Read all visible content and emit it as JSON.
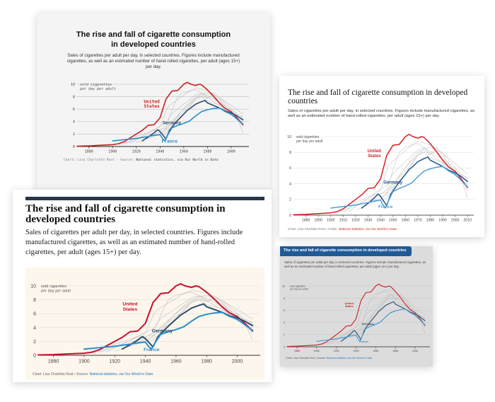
{
  "chart_data": {
    "type": "line",
    "title": "The rise and fall of cigarette consumption in developed countries",
    "subtitle": "Sales of cigarettes per adult per day, in selected countries. Figures include manufactured cigarettes, as well as an estimated number of hand-rolled cigarettes, per adult (ages 15+) per day.",
    "ylabel_lines": [
      "sold cigarettes",
      "per day per adult"
    ],
    "ylim": [
      0,
      10
    ],
    "yticks": [
      0,
      2,
      4,
      6,
      8,
      10
    ],
    "xlim": [
      1870,
      2015
    ],
    "xticks_wide": [
      1880,
      1900,
      1920,
      1940,
      1960,
      1980,
      2000
    ],
    "xticks_dense": [
      1880,
      1890,
      1900,
      1910,
      1920,
      1930,
      1940,
      1950,
      1960,
      1970,
      1980,
      1990,
      2000,
      2010
    ],
    "xticks_c1": [
      1880,
      1900,
      1920,
      1940,
      1960,
      1980,
      2000
    ],
    "xticks_c4": [
      1880,
      1900,
      1920,
      1940,
      1960,
      1980,
      2000
    ],
    "colors": {
      "united_states": "#cc1f1f",
      "germany": "#2b4c6e",
      "france": "#2b8fc9",
      "other": "#c8c8c8",
      "blue_dark": "#20558c",
      "blue_light": "#4e9fd6"
    },
    "series": [
      {
        "name": "United States",
        "label": [
          "United",
          "States"
        ],
        "key": "united_states",
        "x": [
          1870,
          1880,
          1890,
          1900,
          1905,
          1910,
          1915,
          1920,
          1925,
          1930,
          1935,
          1940,
          1945,
          1950,
          1955,
          1960,
          1963,
          1966,
          1970,
          1973,
          1975,
          1980,
          1985,
          1990,
          1995,
          2000,
          2005,
          2010
        ],
        "y": [
          0.05,
          0.1,
          0.2,
          0.3,
          0.45,
          0.8,
          1.4,
          2.0,
          2.6,
          3.4,
          3.5,
          4.6,
          7.6,
          8.9,
          9.0,
          10.0,
          10.3,
          10.0,
          9.8,
          10.0,
          9.9,
          9.1,
          8.1,
          7.0,
          6.1,
          5.6,
          4.6,
          3.5
        ]
      },
      {
        "name": "Germany",
        "label": [
          "Germany"
        ],
        "key": "germany",
        "x": [
          1925,
          1928,
          1930,
          1935,
          1938,
          1940,
          1945,
          1948,
          1950,
          1955,
          1960,
          1963,
          1966,
          1970,
          1975,
          1978,
          1980,
          1985,
          1990,
          1995,
          2000,
          2005,
          2010
        ],
        "y": [
          0.9,
          1.3,
          1.5,
          2.2,
          2.7,
          2.4,
          1.2,
          2.6,
          3.1,
          4.2,
          5.2,
          5.8,
          6.2,
          6.8,
          7.2,
          7.4,
          7.0,
          6.6,
          6.2,
          5.7,
          5.4,
          4.9,
          4.3
        ]
      },
      {
        "name": "France",
        "label": [
          "France"
        ],
        "key": "france",
        "x": [
          1900,
          1910,
          1920,
          1930,
          1935,
          1940,
          1942,
          1944,
          1946,
          1950,
          1955,
          1960,
          1965,
          1970,
          1975,
          1980,
          1985,
          1990,
          1995,
          2000,
          2005,
          2010
        ],
        "y": [
          0.9,
          1.1,
          1.3,
          1.6,
          1.8,
          1.9,
          1.3,
          0.9,
          1.7,
          3.0,
          3.4,
          3.7,
          4.1,
          4.9,
          5.6,
          5.9,
          6.1,
          6.2,
          5.6,
          5.2,
          4.4,
          3.6
        ]
      }
    ],
    "other_series": [
      {
        "x": [
          1905,
          1915,
          1920,
          1930,
          1940,
          1946,
          1950,
          1960,
          1965,
          1970,
          1975,
          1980,
          1990,
          2000,
          2010
        ],
        "y": [
          0.3,
          0.9,
          1.6,
          2.3,
          3.2,
          6.2,
          6.9,
          8.2,
          9.0,
          9.1,
          8.6,
          7.9,
          6.6,
          5.0,
          3.9
        ]
      },
      {
        "x": [
          1910,
          1920,
          1930,
          1940,
          1945,
          1950,
          1960,
          1970,
          1975,
          1980,
          1990,
          2000,
          2010
        ],
        "y": [
          0.4,
          1.2,
          2.1,
          3.3,
          3.8,
          5.3,
          6.8,
          8.3,
          8.6,
          8.2,
          7.1,
          5.9,
          4.6
        ]
      },
      {
        "x": [
          1920,
          1930,
          1940,
          1950,
          1955,
          1960,
          1965,
          1970,
          1975,
          1980,
          1990,
          2000,
          2010
        ],
        "y": [
          0.6,
          1.3,
          2.0,
          3.6,
          4.4,
          5.2,
          6.6,
          7.6,
          8.0,
          7.3,
          6.7,
          5.4,
          4.8
        ]
      },
      {
        "x": [
          1915,
          1925,
          1935,
          1945,
          1950,
          1955,
          1960,
          1965,
          1970,
          1975,
          1980,
          1985,
          1990,
          2000,
          2010
        ],
        "y": [
          0.5,
          1.6,
          2.6,
          2.9,
          5.8,
          8.0,
          8.7,
          8.8,
          9.4,
          9.2,
          8.9,
          8.5,
          7.9,
          6.6,
          5.2
        ]
      },
      {
        "x": [
          1925,
          1935,
          1945,
          1950,
          1960,
          1965,
          1970,
          1975,
          1980,
          1985,
          1990,
          1995,
          2000,
          2005,
          2010
        ],
        "y": [
          1.0,
          2.0,
          2.6,
          4.1,
          6.0,
          6.9,
          7.7,
          8.5,
          8.6,
          8.3,
          7.9,
          7.0,
          6.1,
          4.9,
          4.1
        ]
      },
      {
        "x": [
          1930,
          1940,
          1950,
          1960,
          1965,
          1970,
          1975,
          1980,
          1985,
          1990,
          1995,
          2000,
          2005,
          2010
        ],
        "y": [
          1.8,
          2.6,
          3.9,
          5.6,
          6.4,
          7.6,
          8.1,
          7.8,
          8.1,
          7.4,
          6.6,
          5.2,
          4.6,
          3.1
        ]
      },
      {
        "x": [
          1935,
          1945,
          1950,
          1955,
          1960,
          1965,
          1970,
          1975,
          1980,
          1985,
          1990,
          1995,
          2000,
          2005,
          2010
        ],
        "y": [
          1.9,
          2.2,
          3.4,
          4.9,
          6.1,
          7.1,
          8.0,
          8.4,
          7.7,
          8.6,
          7.7,
          6.5,
          5.1,
          4.6,
          2.2
        ]
      }
    ]
  },
  "cards": {
    "c1": {
      "title_lines": [
        "The rise and fall of cigarette consumption",
        "in developed countries"
      ],
      "subtitle": "Sales of cigarettes per adult per day, in selected countries. Figures include manufactured cigarettes, as well as an estimated number of hand-rolled cigarettes, per adult (ages 15+) per day.",
      "source_prefix": "Chart: Lisa Charlotte Rost · Source: ",
      "source_link": "National statistics, via Our World in Data"
    },
    "c2": {
      "title": "The rise and fall of cigarette consumption in developed countries",
      "subtitle": "Sales of cigarettes per adult per day, in selected countries. Figures include manufactured cigarettes, as well as an estimated number of hand-rolled cigarettes, per adult (ages 15+) per day.",
      "source_prefix": "Chart: Lisa Charlotte Rost • Grafic: ",
      "source_link": "National statistics, via Our World in Data"
    },
    "c3": {
      "title": "The rise and fall of cigarette consumption in developed countries",
      "subtitle": "Sales of cigarettes per adult per day, in selected countries. Figures include manufactured cigarettes, as well as an estimated number of hand-rolled cigarettes, per adult (ages 15+) per day.",
      "source_prefix": "Chart: Lisa Charlotte Rost • Source: ",
      "source_link": "National statistics, via Our World in Data"
    },
    "c4": {
      "title": "The rise and fall of cigarette consumption in developed countries",
      "subtitle": "Sales of cigarettes per adult per day, in selected countries. Figures include manufactured cigarettes, as well as an estimated number of hand-rolled cigarettes, per adult (ages 15+) per day.",
      "source_prefix": "Chart: Lisa Charlotte Rost | Source: ",
      "source_link": "National statistics, via Our World in Data"
    }
  }
}
